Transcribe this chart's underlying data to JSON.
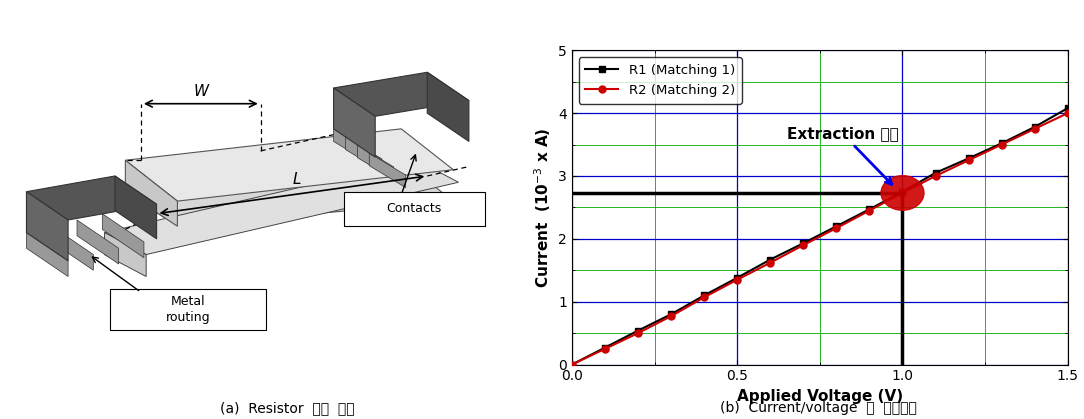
{
  "voltage": [
    0.0,
    0.1,
    0.2,
    0.3,
    0.4,
    0.5,
    0.6,
    0.7,
    0.8,
    0.9,
    1.0,
    1.1,
    1.2,
    1.3,
    1.4,
    1.5
  ],
  "current_R1": [
    0.0,
    0.27,
    0.54,
    0.8,
    1.1,
    1.38,
    1.67,
    1.93,
    2.2,
    2.47,
    2.75,
    3.05,
    3.28,
    3.52,
    3.78,
    4.08
  ],
  "current_R2": [
    0.0,
    0.25,
    0.5,
    0.77,
    1.07,
    1.35,
    1.62,
    1.9,
    2.17,
    2.45,
    2.73,
    3.0,
    3.25,
    3.5,
    3.75,
    4.0
  ],
  "extraction_v": 1.0,
  "extraction_i": 2.73,
  "xlabel": "Applied Voltage (V)",
  "legend_R1": "R1 (Matching 1)",
  "legend_R2": "R2 (Matching 2)",
  "annotation": "Extraction 지점",
  "xlim": [
    0.0,
    1.5
  ],
  "ylim": [
    0,
    5
  ],
  "xticks": [
    0.0,
    0.5,
    1.0,
    1.5
  ],
  "yticks": [
    0,
    1,
    2,
    3,
    4,
    5
  ],
  "caption_left": "(a)  Resistor  기본  구조",
  "caption_right": "(b)  Current/voltage  비  추출지점",
  "bg_color": "#ffffff",
  "grid_major_color": "#0000cc",
  "grid_minor_color": "#00aa00",
  "R1_color": "#000000",
  "R2_color": "#cc0000",
  "marker_R1": "s",
  "marker_R2": "o",
  "extraction_circle_color": "#cc0000",
  "crosshair_color": "#000000"
}
